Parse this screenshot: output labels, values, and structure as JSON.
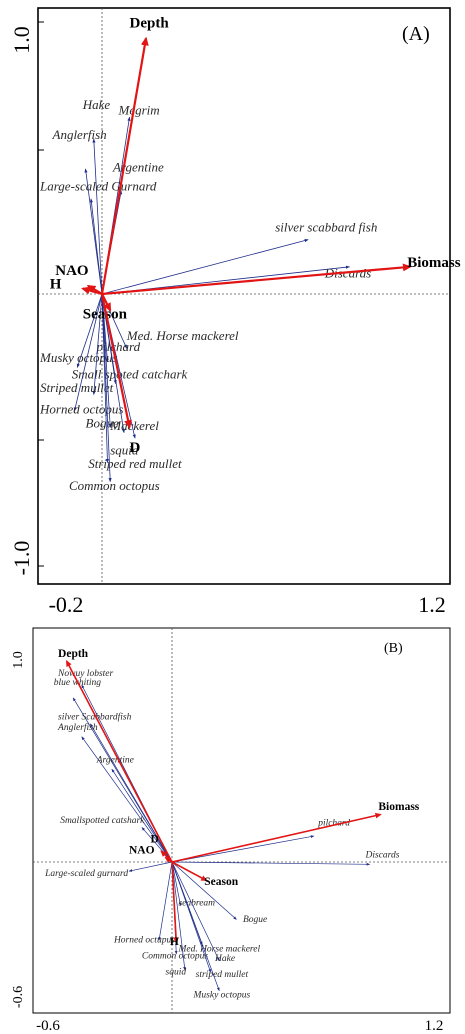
{
  "chart_data": [
    {
      "type": "scatter",
      "subtype": "biplot",
      "panel_label": "(A)",
      "x_ticks": [
        "-0.2",
        "1.2"
      ],
      "y_ticks": [
        "1.0",
        "-1.0"
      ],
      "xlim": [
        -0.2,
        1.2
      ],
      "ylim": [
        -1.0,
        1.0
      ],
      "origin": [
        0.0,
        0.0
      ],
      "grid": false,
      "colors": {
        "species": "#1f2d8a",
        "variables": "#e31414",
        "frame": "#000000"
      },
      "variables": [
        {
          "label": "Depth",
          "x": 0.16,
          "y": 0.94,
          "lx": 0.1,
          "ly": 0.98,
          "anchor": "start"
        },
        {
          "label": "Biomass",
          "x": 1.12,
          "y": 0.1,
          "lx": 1.11,
          "ly": 0.1,
          "anchor": "start"
        },
        {
          "label": "NAO",
          "x": -0.05,
          "y": 0.03,
          "lx": -0.17,
          "ly": 0.07,
          "anchor": "start"
        },
        {
          "label": "H",
          "x": -0.07,
          "y": 0.02,
          "lx": -0.19,
          "ly": 0.02,
          "anchor": "start"
        },
        {
          "label": "Season",
          "x": 0.03,
          "y": -0.06,
          "lx": -0.07,
          "ly": -0.09,
          "anchor": "start"
        },
        {
          "label": "D",
          "x": 0.1,
          "y": -0.49,
          "lx": 0.1,
          "ly": -0.58,
          "anchor": "start"
        }
      ],
      "species": [
        {
          "label": "Hake",
          "x": -0.03,
          "y": 0.57,
          "lx": -0.07,
          "ly": 0.68,
          "anchor": "start"
        },
        {
          "label": "Megrim",
          "x": 0.1,
          "y": 0.65,
          "lx": 0.06,
          "ly": 0.66,
          "anchor": "start"
        },
        {
          "label": "Anglerfish",
          "x": -0.06,
          "y": 0.46,
          "lx": -0.18,
          "ly": 0.57,
          "anchor": "start"
        },
        {
          "label": "Argentine",
          "x": 0.07,
          "y": 0.38,
          "lx": 0.04,
          "ly": 0.45,
          "anchor": "start"
        },
        {
          "label": "Large-scaled Gurnard",
          "x": -0.04,
          "y": 0.35,
          "lx": -0.34,
          "ly": 0.38,
          "anchor": "start"
        },
        {
          "label": "silver scabbard fish",
          "x": 0.75,
          "y": 0.2,
          "lx": 0.63,
          "ly": 0.23,
          "anchor": "start"
        },
        {
          "label": "Discards",
          "x": 0.9,
          "y": 0.1,
          "lx": 0.81,
          "ly": 0.06,
          "anchor": "start"
        },
        {
          "label": "Med. Horse mackerel",
          "x": 0.09,
          "y": -0.2,
          "lx": 0.09,
          "ly": -0.17,
          "anchor": "start"
        },
        {
          "label": "pilchard",
          "x": 0.02,
          "y": -0.25,
          "lx": -0.02,
          "ly": -0.21,
          "anchor": "start"
        },
        {
          "label": "Musky octopus",
          "x": -0.09,
          "y": -0.27,
          "lx": -0.34,
          "ly": -0.25,
          "anchor": "start"
        },
        {
          "label": "Small spoted catchark",
          "x": 0.05,
          "y": -0.33,
          "lx": -0.11,
          "ly": -0.31,
          "anchor": "start"
        },
        {
          "label": "Striped mullet",
          "x": -0.03,
          "y": -0.37,
          "lx": -0.24,
          "ly": -0.36,
          "anchor": "start"
        },
        {
          "label": "Horned octopus",
          "x": -0.1,
          "y": -0.43,
          "lx": -0.34,
          "ly": -0.44,
          "anchor": "start"
        },
        {
          "label": "Bogue",
          "x": 0.03,
          "y": -0.49,
          "lx": -0.06,
          "ly": -0.49,
          "anchor": "start"
        },
        {
          "label": "Mackerel",
          "x": 0.08,
          "y": -0.51,
          "lx": 0.03,
          "ly": -0.5,
          "anchor": "start"
        },
        {
          "label": "squid",
          "x": 0.12,
          "y": -0.53,
          "lx": 0.03,
          "ly": -0.59,
          "anchor": "start"
        },
        {
          "label": "Striped red mullet",
          "x": 0.02,
          "y": -0.62,
          "lx": -0.05,
          "ly": -0.64,
          "anchor": "start"
        },
        {
          "label": "Common octopus",
          "x": 0.03,
          "y": -0.69,
          "lx": -0.12,
          "ly": -0.72,
          "anchor": "start"
        }
      ]
    },
    {
      "type": "scatter",
      "subtype": "biplot",
      "panel_label": "(B)",
      "x_ticks": [
        "-0.6",
        "1.2"
      ],
      "y_ticks": [
        "1.0",
        "-0.6"
      ],
      "xlim": [
        -0.6,
        1.2
      ],
      "ylim": [
        -0.6,
        1.0
      ],
      "origin": [
        0.0,
        0.0
      ],
      "grid": false,
      "colors": {
        "species": "#1f2d8a",
        "variables": "#e31414",
        "frame": "#000000"
      },
      "variables": [
        {
          "label": "Depth",
          "x": -0.49,
          "y": 0.93,
          "lx": -0.53,
          "ly": 0.95,
          "anchor": "start"
        },
        {
          "label": "Biomass",
          "x": 0.97,
          "y": 0.22,
          "lx": 0.96,
          "ly": 0.24,
          "anchor": "start"
        },
        {
          "label": "NAO",
          "x": -0.03,
          "y": 0.02,
          "lx": -0.2,
          "ly": 0.04,
          "anchor": "start"
        },
        {
          "label": "D",
          "x": -0.05,
          "y": 0.05,
          "lx": -0.1,
          "ly": 0.09,
          "anchor": "start"
        },
        {
          "label": "Season",
          "x": 0.16,
          "y": -0.08,
          "lx": 0.15,
          "ly": -0.1,
          "anchor": "start"
        },
        {
          "label": "H",
          "x": 0.02,
          "y": -0.35,
          "lx": -0.01,
          "ly": -0.36,
          "anchor": "start"
        }
      ],
      "species": [
        {
          "label": "Nowuy lobster",
          "x": -0.42,
          "y": 0.82,
          "lx": -0.53,
          "ly": 0.86,
          "anchor": "start"
        },
        {
          "label": "blue whiting",
          "x": -0.46,
          "y": 0.76,
          "lx": -0.55,
          "ly": 0.82,
          "anchor": "start"
        },
        {
          "label": "silver Scabbardfish",
          "x": -0.38,
          "y": 0.64,
          "lx": -0.53,
          "ly": 0.66,
          "anchor": "start"
        },
        {
          "label": "Anglerfish",
          "x": -0.42,
          "y": 0.58,
          "lx": -0.53,
          "ly": 0.61,
          "anchor": "start"
        },
        {
          "label": "Argentine",
          "x": -0.28,
          "y": 0.43,
          "lx": -0.35,
          "ly": 0.46,
          "anchor": "start"
        },
        {
          "label": "Smallspotted catshark",
          "x": -0.14,
          "y": 0.16,
          "lx": -0.52,
          "ly": 0.18,
          "anchor": "start"
        },
        {
          "label": "pilchard",
          "x": 0.66,
          "y": 0.12,
          "lx": 0.68,
          "ly": 0.17,
          "anchor": "start"
        },
        {
          "label": "Discards",
          "x": 0.92,
          "y": -0.01,
          "lx": 0.9,
          "ly": 0.02,
          "anchor": "start"
        },
        {
          "label": "Large-scaled gurnard",
          "x": -0.2,
          "y": -0.04,
          "lx": -0.59,
          "ly": -0.06,
          "anchor": "start"
        },
        {
          "label": "seabream",
          "x": 0.04,
          "y": -0.19,
          "lx": 0.03,
          "ly": -0.19,
          "anchor": "start"
        },
        {
          "label": "Bogue",
          "x": 0.3,
          "y": -0.25,
          "lx": 0.33,
          "ly": -0.26,
          "anchor": "start"
        },
        {
          "label": "Horned octupus",
          "x": -0.06,
          "y": -0.34,
          "lx": -0.27,
          "ly": -0.35,
          "anchor": "start"
        },
        {
          "label": "Med. Horse mackerel",
          "x": 0.14,
          "y": -0.36,
          "lx": 0.03,
          "ly": -0.39,
          "anchor": "start"
        },
        {
          "label": "Common octopus",
          "x": 0.02,
          "y": -0.4,
          "lx": -0.14,
          "ly": -0.42,
          "anchor": "start"
        },
        {
          "label": "Hake",
          "x": 0.22,
          "y": -0.43,
          "lx": 0.2,
          "ly": -0.43,
          "anchor": "start"
        },
        {
          "label": "squid",
          "x": 0.06,
          "y": -0.47,
          "lx": -0.03,
          "ly": -0.49,
          "anchor": "start"
        },
        {
          "label": "striped mullet",
          "x": 0.18,
          "y": -0.48,
          "lx": 0.11,
          "ly": -0.5,
          "anchor": "start"
        },
        {
          "label": "Musky octopus",
          "x": 0.22,
          "y": -0.56,
          "lx": 0.1,
          "ly": -0.59,
          "anchor": "start"
        }
      ]
    }
  ]
}
